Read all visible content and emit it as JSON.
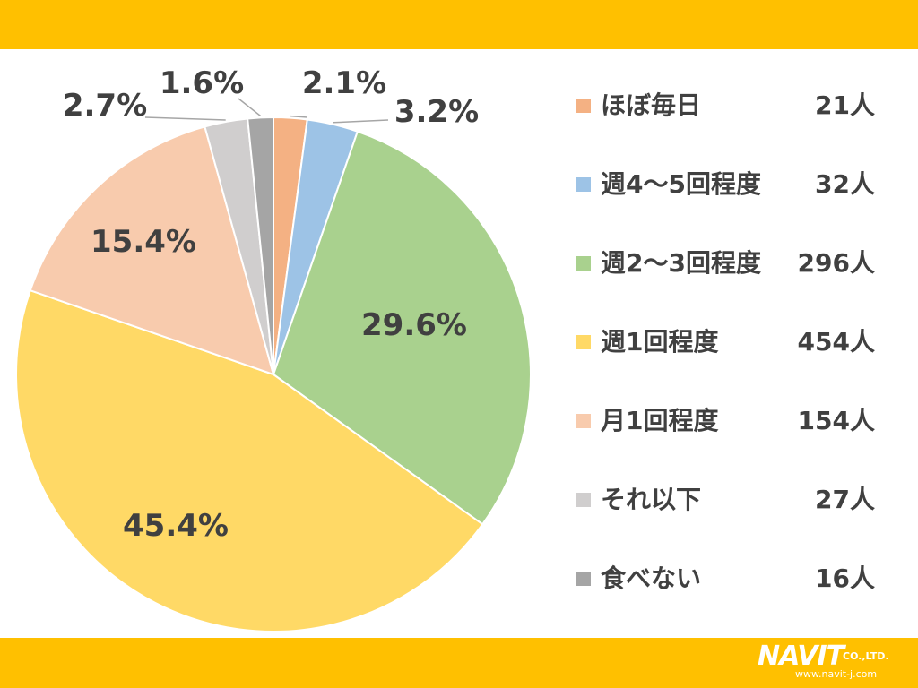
{
  "colors": {
    "band": "#FFC000",
    "text": "#404040",
    "leader": "#A6A6A6"
  },
  "chart_data": {
    "type": "pie",
    "start_angle_deg": 0,
    "direction": "clockwise",
    "legend_position": "right",
    "slices": [
      {
        "label": "ほぼ毎日",
        "count": "21人",
        "value": 2.1,
        "pct_label": "2.1%",
        "color": "#F4B183"
      },
      {
        "label": "週4～5回程度",
        "count": "32人",
        "value": 3.2,
        "pct_label": "3.2%",
        "color": "#9DC3E6"
      },
      {
        "label": "週2～3回程度",
        "count": "296人",
        "value": 29.6,
        "pct_label": "29.6%",
        "color": "#A9D18E"
      },
      {
        "label": "週1回程度",
        "count": "454人",
        "value": 45.4,
        "pct_label": "45.4%",
        "color": "#FFD966"
      },
      {
        "label": "月1回程度",
        "count": "154人",
        "value": 15.4,
        "pct_label": "15.4%",
        "color": "#F8CBAD"
      },
      {
        "label": "それ以下",
        "count": "27人",
        "value": 2.7,
        "pct_label": "2.7%",
        "color": "#D0CECE"
      },
      {
        "label": "食べない",
        "count": "16人",
        "value": 1.6,
        "pct_label": "1.6%",
        "color": "#A5A5A5"
      }
    ]
  },
  "logo": {
    "name": "NAVIT",
    "suffix": "CO.,LTD.",
    "url": "www.navit-j.com"
  }
}
